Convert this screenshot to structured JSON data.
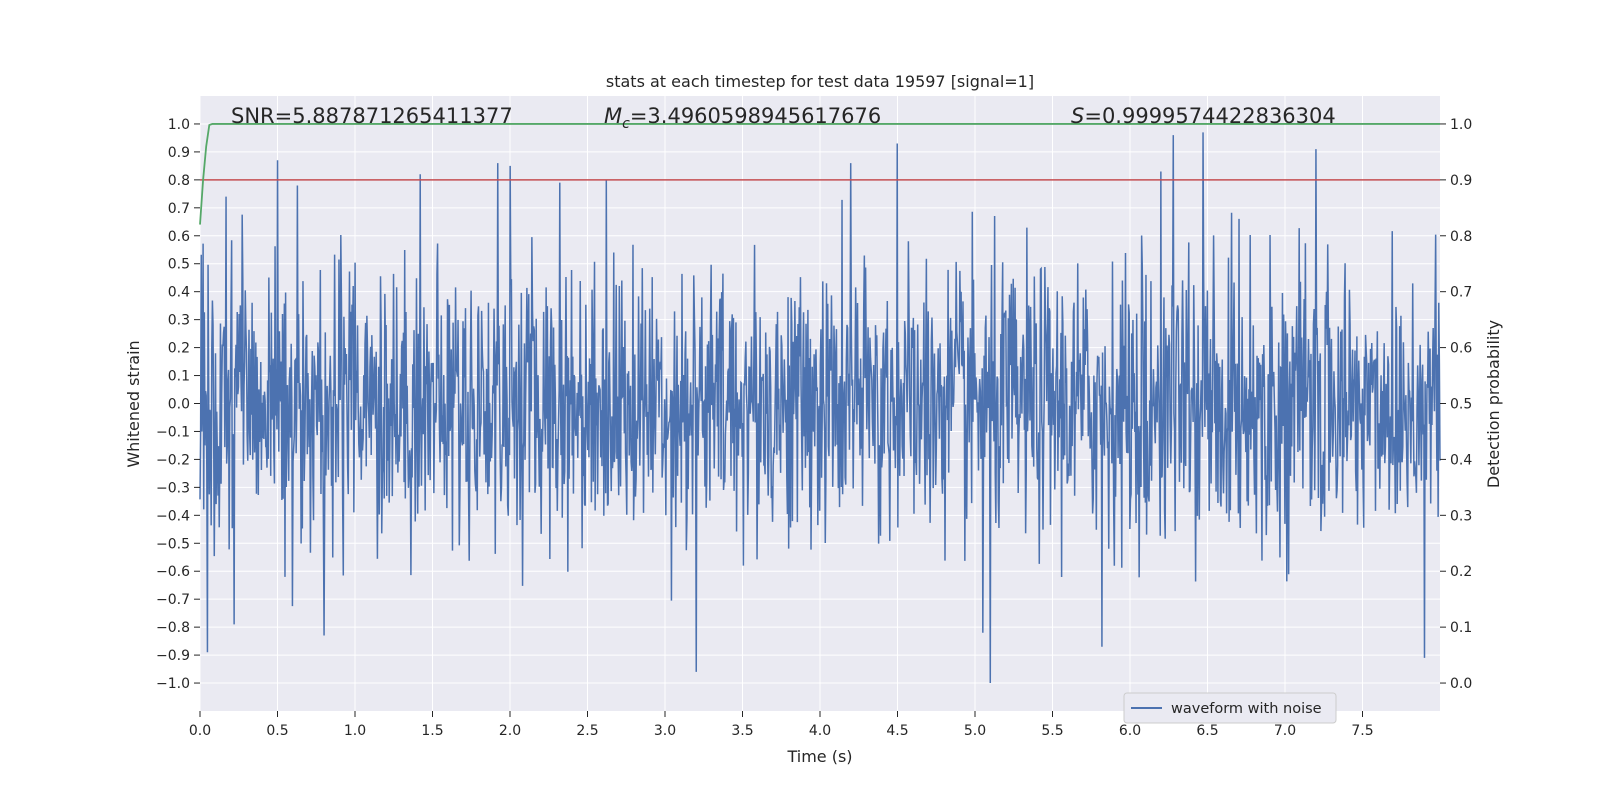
{
  "chart_data": {
    "type": "line",
    "title": "stats at each timestep for test data 19597 [signal=1]",
    "xlabel": "Time (s)",
    "ylabel": "Whitened strain",
    "y2label": "Detection probability",
    "xlim": [
      0.0,
      8.0
    ],
    "ylim": [
      -1.1,
      1.1
    ],
    "y2lim": [
      -0.05,
      1.05
    ],
    "xticks": [
      "0.0",
      "0.5",
      "1.0",
      "1.5",
      "2.0",
      "2.5",
      "3.0",
      "3.5",
      "4.0",
      "4.5",
      "5.0",
      "5.5",
      "6.0",
      "6.5",
      "7.0",
      "7.5"
    ],
    "xtick_values": [
      0.0,
      0.5,
      1.0,
      1.5,
      2.0,
      2.5,
      3.0,
      3.5,
      4.0,
      4.5,
      5.0,
      5.5,
      6.0,
      6.5,
      7.0,
      7.5
    ],
    "yticks": [
      "1.0",
      "0.9",
      "0.8",
      "0.7",
      "0.6",
      "0.5",
      "0.4",
      "0.3",
      "0.2",
      "0.1",
      "0.0",
      "−0.1",
      "−0.2",
      "−0.3",
      "−0.4",
      "−0.5",
      "−0.6",
      "−0.7",
      "−0.8",
      "−0.9",
      "−1.0"
    ],
    "ytick_values": [
      1.0,
      0.9,
      0.8,
      0.7,
      0.6,
      0.5,
      0.4,
      0.3,
      0.2,
      0.1,
      0.0,
      -0.1,
      -0.2,
      -0.3,
      -0.4,
      -0.5,
      -0.6,
      -0.7,
      -0.8,
      -0.9,
      -1.0
    ],
    "y2ticks": [
      "1.0",
      "0.9",
      "0.8",
      "0.7",
      "0.6",
      "0.5",
      "0.4",
      "0.3",
      "0.2",
      "0.1",
      "0.0"
    ],
    "y2tick_values": [
      1.0,
      0.9,
      0.8,
      0.7,
      0.6,
      0.5,
      0.4,
      0.3,
      0.2,
      0.1,
      0.0
    ],
    "annotations": {
      "snr": "SNR=5.887871265411377",
      "mc_symbol": "M",
      "mc_subscript": "c",
      "mc_value": "=3.4960598945617676",
      "s_symbol": "S",
      "s_value": "=0.9999574422836304"
    },
    "series": [
      {
        "name": "waveform with noise",
        "axis": "left",
        "color": "#4c72b0",
        "kind": "noise-envelope",
        "x_range": [
          0.0,
          8.0
        ],
        "typical_amplitude": [
          -0.4,
          0.4
        ],
        "peaks": [
          {
            "x": 0.05,
            "y": -0.89
          },
          {
            "x": 0.17,
            "y": 0.74
          },
          {
            "x": 0.22,
            "y": -0.79
          },
          {
            "x": 0.5,
            "y": 0.87
          },
          {
            "x": 0.63,
            "y": 0.78
          },
          {
            "x": 0.8,
            "y": -0.83
          },
          {
            "x": 1.42,
            "y": 0.82
          },
          {
            "x": 1.92,
            "y": 0.86
          },
          {
            "x": 2.0,
            "y": 0.85
          },
          {
            "x": 2.32,
            "y": 0.79
          },
          {
            "x": 2.62,
            "y": 0.8
          },
          {
            "x": 3.2,
            "y": -0.96
          },
          {
            "x": 4.2,
            "y": 0.86
          },
          {
            "x": 4.5,
            "y": 0.93
          },
          {
            "x": 5.05,
            "y": -0.82
          },
          {
            "x": 5.1,
            "y": -1.0
          },
          {
            "x": 5.82,
            "y": -0.87
          },
          {
            "x": 6.2,
            "y": 0.83
          },
          {
            "x": 6.28,
            "y": 0.96
          },
          {
            "x": 6.47,
            "y": 0.97
          },
          {
            "x": 7.2,
            "y": 0.91
          },
          {
            "x": 7.9,
            "y": -0.91
          }
        ]
      },
      {
        "name": "",
        "axis": "right",
        "color": "#c44e52",
        "kind": "constant",
        "y": 0.9
      },
      {
        "name": "",
        "axis": "right",
        "color": "#55a868",
        "kind": "line",
        "x": [
          0.0,
          0.02,
          0.04,
          0.06,
          0.08,
          0.12,
          8.0
        ],
        "y": [
          0.82,
          0.9,
          0.96,
          0.998,
          1.0,
          1.0,
          1.0
        ]
      }
    ],
    "legend": {
      "entries": [
        "waveform with noise"
      ],
      "placement": "lower-right"
    },
    "grid": true
  }
}
